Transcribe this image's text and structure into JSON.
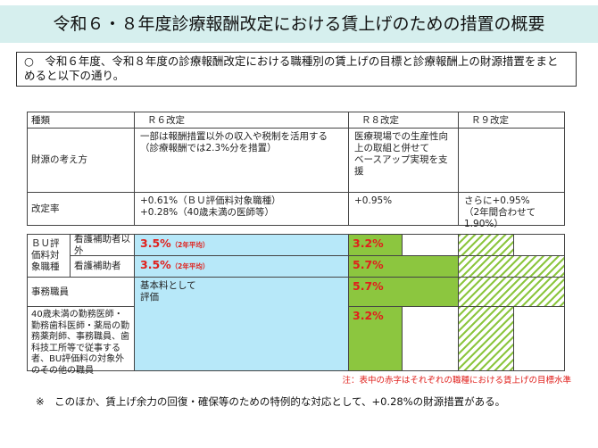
{
  "header": {
    "title": "令和６・８年度診療報酬改定における賃上げのための措置の概要"
  },
  "intro": "○　令和６年度、令和８年度の診療報酬改定における職種別の賃上げの目標と診療報酬上の財源措置をまとめると以下の通り。",
  "summary_table": {
    "header": [
      "種類",
      "Ｒ６改定",
      "Ｒ８改定",
      "Ｒ９改定"
    ],
    "rows": [
      {
        "label": "財源の考え方",
        "r6": [
          "一部は報酬措置以外の収入や税制を活用する",
          "（診療報酬では2.3%分を措置）"
        ],
        "r8": [
          "医療現場での生産性向上の取組と併せて",
          "ベースアップ実現を支援"
        ]
      },
      {
        "label": "改定率",
        "r6": [
          "+0.61%（ＢＵ評価料対象職種）",
          "+0.28%（40歳未満の医師等）"
        ],
        "r8": [
          "+0.95%"
        ],
        "r9": [
          "さらに+0.95%",
          "（2年間合わせて1.90%）"
        ]
      }
    ]
  },
  "target_table": {
    "group_label": "ＢＵ評価料対象職種",
    "rows": [
      {
        "label": "看護補助者以外",
        "r6": "3.5%",
        "r6_note": "（2年平均）",
        "r8": "3.2%"
      },
      {
        "label": "看護補助者",
        "r6": "3.5%",
        "r6_note": "（2年平均）",
        "r8": "5.7%"
      },
      {
        "label": "事務職員",
        "r8": "5.7%"
      },
      {
        "label": "40歳未満の勤務医師・勤務歯科医師・薬局の勤務薬剤師、事務職員、歯科技工所等で従事する者、BU評価料の対象外のその他の職員",
        "r8": "3.2%"
      }
    ],
    "merged_r6": [
      "基本料として",
      "評価"
    ]
  },
  "note": "注：表中の赤字はそれぞれの職種における賃上げの目標水準",
  "footnote": "※　このほか、賃上げ余力の回復・確保等のための特例的な対応として、+0.28%の財源措置がある。"
}
